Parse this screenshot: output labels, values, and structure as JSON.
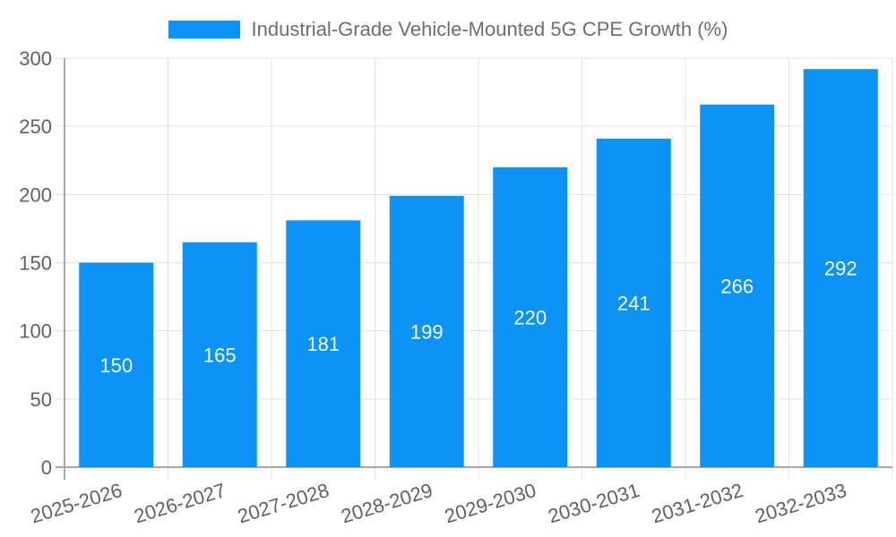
{
  "chart_data": {
    "type": "bar",
    "title": "Industrial-Grade Vehicle-Mounted 5G CPE Growth (%)",
    "series_name": "Industrial-Grade Vehicle-Mounted 5G CPE Growth (%)",
    "categories": [
      "2025-2026",
      "2026-2027",
      "2027-2028",
      "2028-2029",
      "2029-2030",
      "2030-2031",
      "2031-2032",
      "2032-2033"
    ],
    "values": [
      150,
      165,
      181,
      199,
      220,
      241,
      266,
      292
    ],
    "y_ticks": [
      0,
      50,
      100,
      150,
      200,
      250,
      300
    ],
    "ylim": [
      0,
      300
    ],
    "xlabel": "",
    "ylabel": "",
    "grid": true,
    "legend_position": "top",
    "bar_color": "#0b93f5",
    "bar_label_color": "#ffffff",
    "grid_color": "#e2e2e2",
    "axis_color": "#a8a8a8",
    "tick_text_color": "#616161",
    "legend_text_color": "#6e6e6e",
    "background": "#ffffff"
  }
}
